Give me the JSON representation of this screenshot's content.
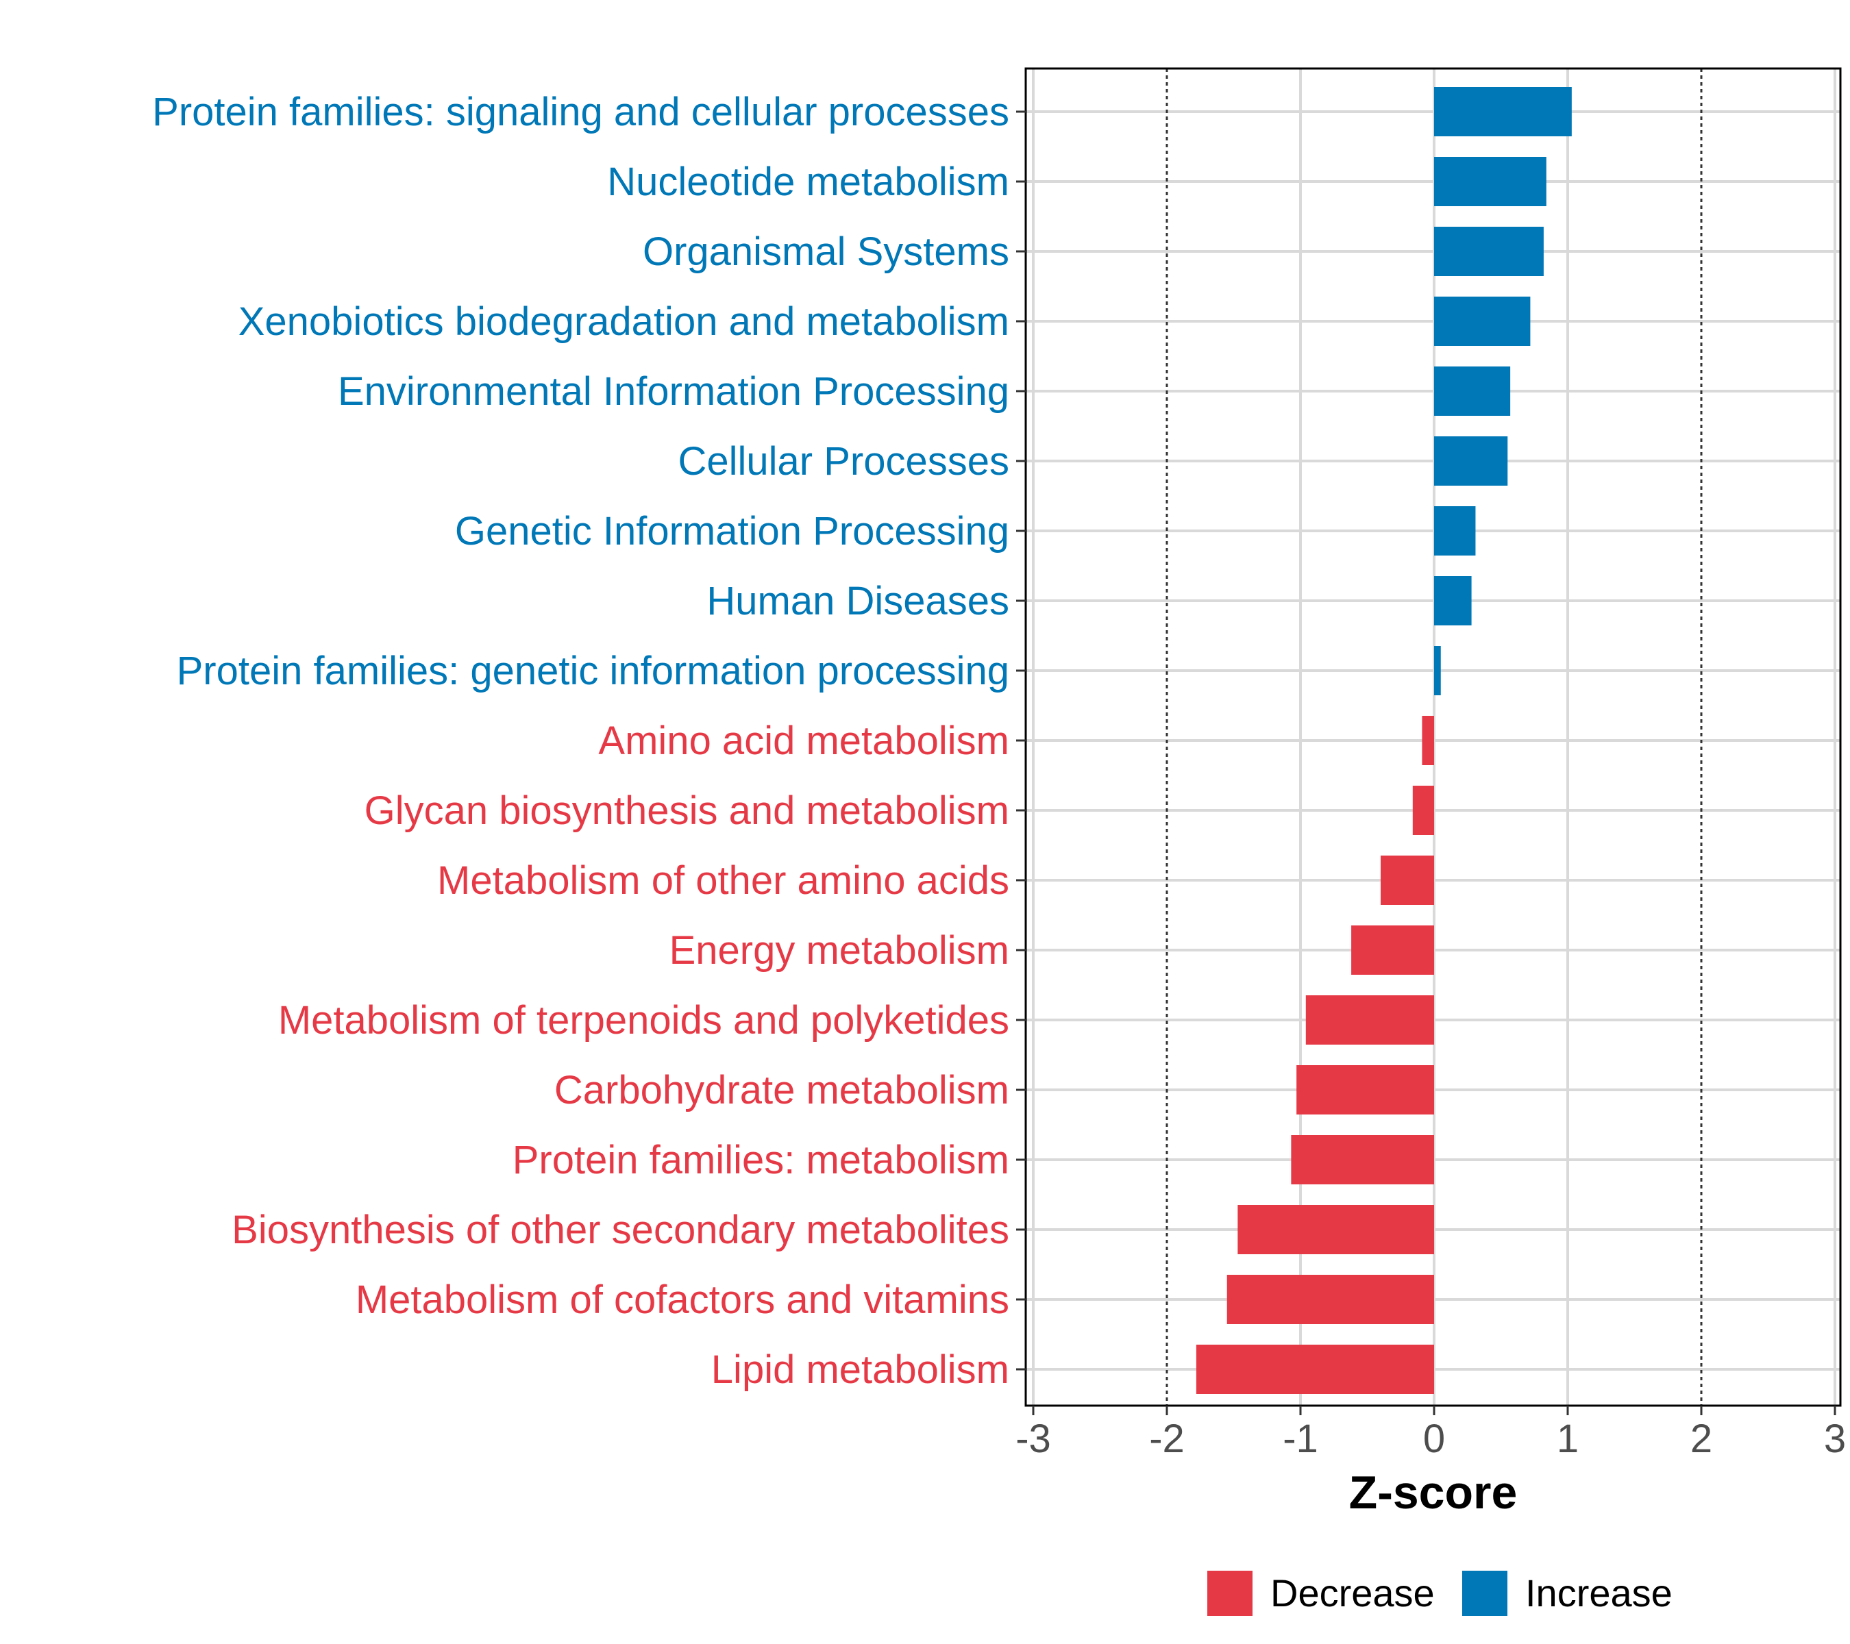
{
  "chart_data": {
    "type": "bar",
    "orientation": "horizontal",
    "xlabel": "Z-score",
    "ylabel": "",
    "xlim": [
      -3,
      3
    ],
    "xticks": [
      -3,
      -2,
      -1,
      0,
      1,
      2,
      3
    ],
    "xtick_labels": [
      "-3",
      "-2",
      "-1",
      "0",
      "1",
      "2",
      "3"
    ],
    "reference_lines": [
      -2,
      2
    ],
    "grid": true,
    "colors": {
      "Decrease": "#e63946",
      "Increase": "#0077b6"
    },
    "legend": {
      "position": "bottom",
      "entries": [
        {
          "label": "Decrease",
          "color": "#e63946"
        },
        {
          "label": "Increase",
          "color": "#0077b6"
        }
      ]
    },
    "categories": [
      "Protein families: signaling and cellular processes",
      "Nucleotide metabolism",
      "Organismal Systems",
      "Xenobiotics biodegradation and metabolism",
      "Environmental Information Processing",
      "Cellular Processes",
      "Genetic Information Processing",
      "Human Diseases",
      "Protein families: genetic information processing",
      "Amino acid metabolism",
      "Glycan biosynthesis and metabolism",
      "Metabolism of other amino acids",
      "Energy metabolism",
      "Metabolism of terpenoids and polyketides",
      "Carbohydrate metabolism",
      "Protein families: metabolism",
      "Biosynthesis of other secondary metabolites",
      "Metabolism of cofactors and vitamins",
      "Lipid metabolism"
    ],
    "values": [
      1.03,
      0.84,
      0.82,
      0.72,
      0.57,
      0.55,
      0.31,
      0.28,
      0.05,
      -0.09,
      -0.16,
      -0.4,
      -0.62,
      -0.96,
      -1.03,
      -1.07,
      -1.47,
      -1.55,
      -1.78
    ],
    "groups": [
      "Increase",
      "Increase",
      "Increase",
      "Increase",
      "Increase",
      "Increase",
      "Increase",
      "Increase",
      "Increase",
      "Decrease",
      "Decrease",
      "Decrease",
      "Decrease",
      "Decrease",
      "Decrease",
      "Decrease",
      "Decrease",
      "Decrease",
      "Decrease"
    ]
  }
}
